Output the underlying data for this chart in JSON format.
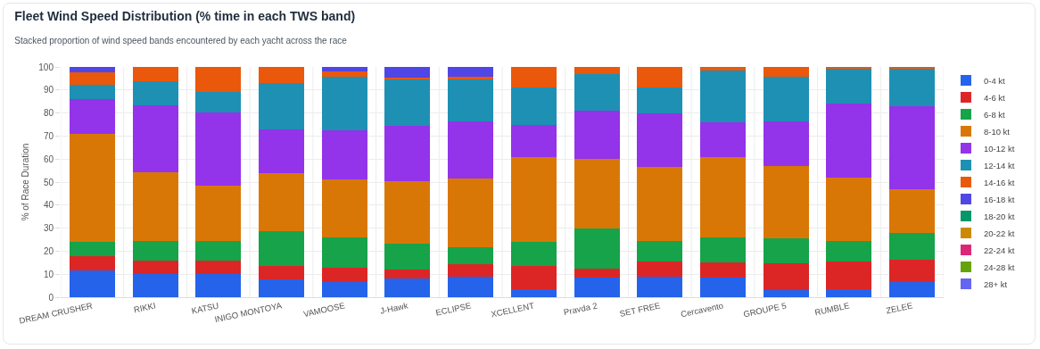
{
  "chart_data": {
    "type": "bar",
    "title": "Fleet Wind Speed Distribution (% time in each TWS band)",
    "subtitle": "Stacked proportion of wind speed bands encountered by each yacht across the race",
    "ylabel": "% of Race Duration",
    "categories": [
      "DREAM CRUSHER",
      "RIKKI",
      "KATSU",
      "INIGO MONTOYA",
      "VAMOOSE",
      "J-Hawk",
      "ECLIPSE",
      "XCELLENT",
      "Pravda 2",
      "SET FREE",
      "Cercavento",
      "GROUPE 5",
      "RUMBLE",
      "ZELEE"
    ],
    "stacked": true,
    "ylim": [
      0,
      100
    ],
    "yticks": [
      0,
      10,
      20,
      30,
      40,
      50,
      60,
      70,
      80,
      90,
      100
    ],
    "grid": true,
    "legend": "right",
    "series": [
      {
        "name": "0-4 kt",
        "color": "#2563eb",
        "values": [
          11.8,
          9.9,
          9.9,
          7.8,
          6.5,
          8.1,
          8.9,
          3.4,
          8.4,
          8.8,
          8.5,
          3.0,
          3.4,
          6.5
        ]
      },
      {
        "name": "4-6 kt",
        "color": "#dc2626",
        "values": [
          6.2,
          6.0,
          5.8,
          5.7,
          6.4,
          3.9,
          5.5,
          10.1,
          3.9,
          6.6,
          6.7,
          11.6,
          12.2,
          9.8
        ]
      },
      {
        "name": "6-8 kt",
        "color": "#16a34a",
        "values": [
          5.9,
          8.7,
          8.6,
          15.1,
          13.1,
          11.3,
          7.3,
          10.4,
          17.6,
          9.2,
          10.9,
          11.0,
          8.7,
          11.8
        ]
      },
      {
        "name": "8-10 kt",
        "color": "#d97706",
        "values": [
          46.9,
          29.8,
          24.3,
          25.4,
          25.2,
          27.2,
          29.7,
          36.8,
          30.0,
          32.1,
          34.6,
          31.5,
          27.7,
          18.8
        ]
      },
      {
        "name": "10-12 kt",
        "color": "#9333ea",
        "values": [
          15.2,
          29.0,
          31.7,
          18.8,
          21.2,
          24.1,
          24.9,
          14.2,
          21.1,
          23.2,
          15.4,
          19.2,
          32.2,
          36.0
        ]
      },
      {
        "name": "12-14 kt",
        "color": "#1e90b4",
        "values": [
          6.2,
          10.5,
          9.0,
          20.1,
          23.2,
          20.0,
          18.3,
          16.3,
          16.0,
          11.2,
          22.2,
          19.5,
          14.9,
          16.4
        ]
      },
      {
        "name": "14-16 kt",
        "color": "#ea580c",
        "values": [
          5.3,
          6.1,
          10.7,
          7.1,
          2.6,
          0.7,
          1.1,
          8.8,
          3.0,
          8.9,
          1.7,
          4.2,
          0.9,
          0.7
        ]
      },
      {
        "name": "16-18 kt",
        "color": "#4f46e5",
        "values": [
          2.5,
          0,
          0,
          0,
          1.8,
          4.7,
          4.3,
          0,
          0,
          0,
          0,
          0,
          0,
          0
        ]
      },
      {
        "name": "18-20 kt",
        "color": "#059669",
        "values": [
          0,
          0,
          0,
          0,
          0,
          0,
          0,
          0,
          0,
          0,
          0,
          0,
          0,
          0
        ]
      },
      {
        "name": "20-22 kt",
        "color": "#ca8a04",
        "values": [
          0,
          0,
          0,
          0,
          0,
          0,
          0,
          0,
          0,
          0,
          0,
          0,
          0,
          0
        ]
      },
      {
        "name": "22-24 kt",
        "color": "#db2777",
        "values": [
          0,
          0,
          0,
          0,
          0,
          0,
          0,
          0,
          0,
          0,
          0,
          0,
          0,
          0
        ]
      },
      {
        "name": "24-28 kt",
        "color": "#65a30d",
        "values": [
          0,
          0,
          0,
          0,
          0,
          0,
          0,
          0,
          0,
          0,
          0,
          0,
          0,
          0
        ]
      },
      {
        "name": "28+ kt",
        "color": "#6366f1",
        "values": [
          0,
          0,
          0,
          0,
          0,
          0,
          0,
          0,
          0,
          0,
          0,
          0,
          0,
          0
        ]
      }
    ]
  }
}
